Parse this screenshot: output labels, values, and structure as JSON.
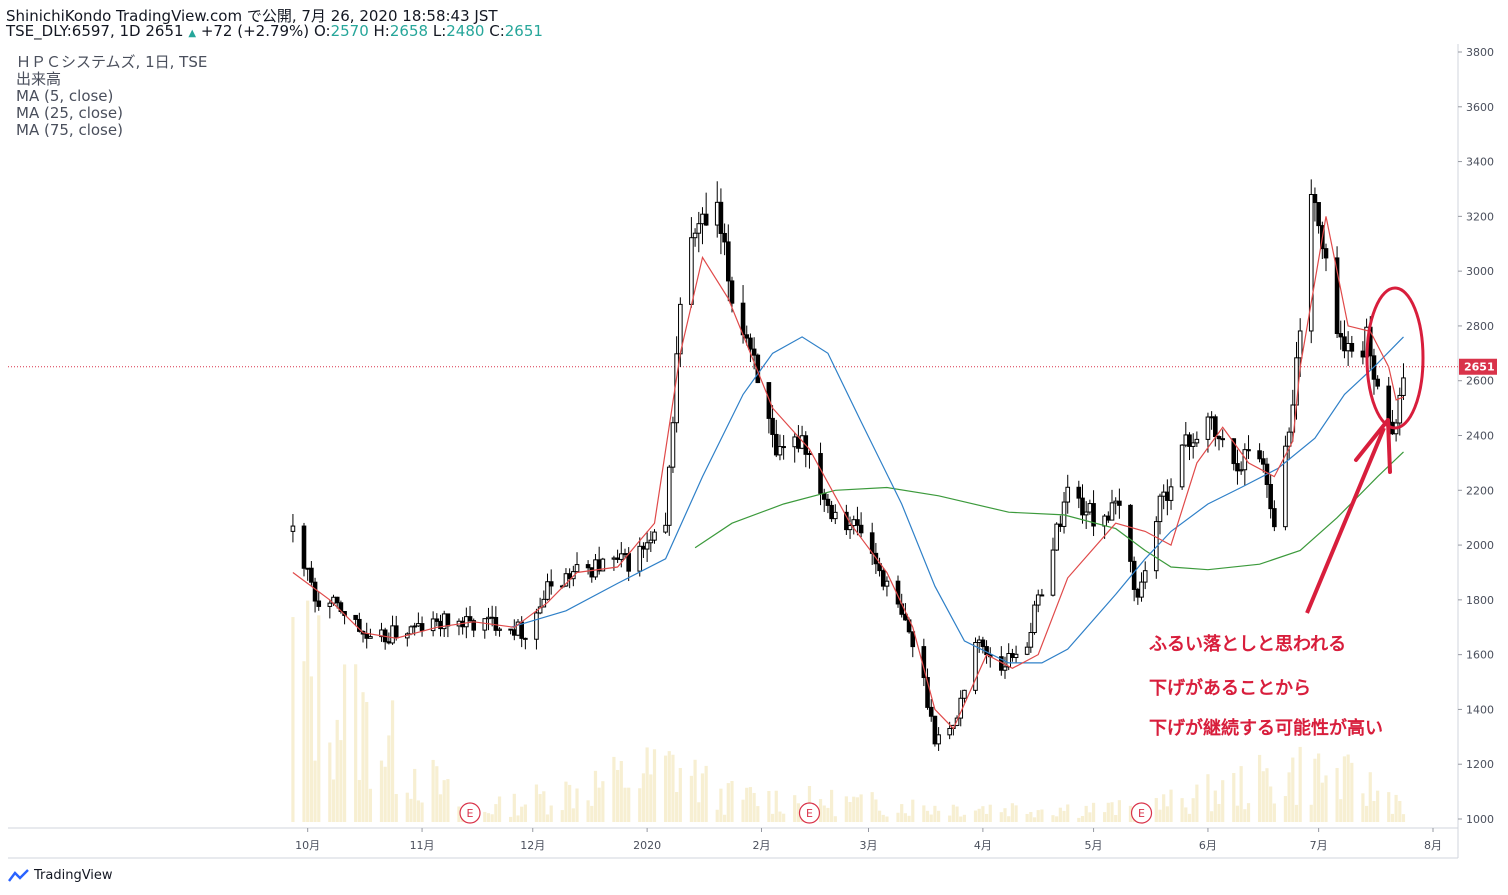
{
  "header": {
    "line1": "ShinichiKondo TradingView.com で公開, 7月 26, 2020 18:58:43 JST",
    "symbol": "TSE_DLY:6597, 1D 2651",
    "change": "+72 (+2.79%)",
    "o_label": "O:",
    "o_value": "2570",
    "h_label": "H:",
    "h_value": "2658",
    "l_label": "L:",
    "l_value": "2480",
    "c_label": "C:",
    "c_value": "2651"
  },
  "legend": {
    "title": "ＨＰＣシステムズ, 1日, TSE",
    "volume": "出来高",
    "ma5": "MA (5, close)",
    "ma25": "MA (25, close)",
    "ma75": "MA (75, close)"
  },
  "annotation": {
    "line1": "ふるい落としと思われる",
    "line2": "下げがあることから",
    "line3": "下げが継続する可能性が高い"
  },
  "footer": {
    "brand": "TradingView"
  },
  "colors": {
    "ma5": "#e04a4a",
    "ma25": "#2f80c8",
    "ma75": "#3c9a3c",
    "last_price": "#d9334a",
    "annotation": "#d81e3c",
    "up_change": "#26a69a"
  },
  "chart_data": {
    "type": "candlestick",
    "y_axis": {
      "min": 1000,
      "max": 3800,
      "ticks": [
        "3800",
        "3600",
        "3400",
        "3200",
        "3000",
        "2800",
        "2600",
        "2400",
        "2200",
        "2000",
        "1800",
        "1600",
        "1400",
        "1200",
        "1000"
      ]
    },
    "x_axis": {
      "ticks": [
        "10月",
        "11月",
        "12月",
        "2020",
        "2月",
        "3月",
        "4月",
        "5月",
        "6月",
        "7月",
        "8月"
      ]
    },
    "last_price": 2651,
    "last_price_label": "2651",
    "earnings_marker": "E",
    "earnings_dates": [
      "2019-11-14",
      "2020-02-14",
      "2020-05-14"
    ],
    "series": [
      {
        "name": "MA (5, close)",
        "points": [
          [
            "2019-09-27",
            1900
          ],
          [
            "2019-10-07",
            1800
          ],
          [
            "2019-10-16",
            1680
          ],
          [
            "2019-10-25",
            1660
          ],
          [
            "2019-11-05",
            1700
          ],
          [
            "2019-11-15",
            1720
          ],
          [
            "2019-11-26",
            1700
          ],
          [
            "2019-12-05",
            1790
          ],
          [
            "2019-12-13",
            1900
          ],
          [
            "2019-12-24",
            1920
          ],
          [
            "2020-01-03",
            2080
          ],
          [
            "2020-01-10",
            2700
          ],
          [
            "2020-01-16",
            3050
          ],
          [
            "2020-01-23",
            2900
          ],
          [
            "2020-02-04",
            2500
          ],
          [
            "2020-02-14",
            2350
          ],
          [
            "2020-02-25",
            2080
          ],
          [
            "2020-03-06",
            1900
          ],
          [
            "2020-03-13",
            1700
          ],
          [
            "2020-03-19",
            1400
          ],
          [
            "2020-03-24",
            1330
          ],
          [
            "2020-04-02",
            1600
          ],
          [
            "2020-04-09",
            1550
          ],
          [
            "2020-04-16",
            1600
          ],
          [
            "2020-04-24",
            1880
          ],
          [
            "2020-05-07",
            2080
          ],
          [
            "2020-05-15",
            2050
          ],
          [
            "2020-05-22",
            2000
          ],
          [
            "2020-05-29",
            2300
          ],
          [
            "2020-06-05",
            2430
          ],
          [
            "2020-06-12",
            2300
          ],
          [
            "2020-06-19",
            2250
          ],
          [
            "2020-06-24",
            2380
          ],
          [
            "2020-06-26",
            2650
          ],
          [
            "2020-07-03",
            3200
          ],
          [
            "2020-07-09",
            2800
          ],
          [
            "2020-07-15",
            2780
          ],
          [
            "2020-07-20",
            2650
          ],
          [
            "2020-07-22",
            2530
          ],
          [
            "2020-07-24",
            2540
          ]
        ]
      },
      {
        "name": "MA (25, close)",
        "points": [
          [
            "2019-11-25",
            1700
          ],
          [
            "2019-12-10",
            1760
          ],
          [
            "2019-12-24",
            1860
          ],
          [
            "2020-01-06",
            1950
          ],
          [
            "2020-01-16",
            2250
          ],
          [
            "2020-01-27",
            2550
          ],
          [
            "2020-02-04",
            2700
          ],
          [
            "2020-02-12",
            2760
          ],
          [
            "2020-02-19",
            2700
          ],
          [
            "2020-02-28",
            2450
          ],
          [
            "2020-03-10",
            2150
          ],
          [
            "2020-03-19",
            1850
          ],
          [
            "2020-03-27",
            1650
          ],
          [
            "2020-04-08",
            1570
          ],
          [
            "2020-04-17",
            1570
          ],
          [
            "2020-04-24",
            1620
          ],
          [
            "2020-05-07",
            1820
          ],
          [
            "2020-05-15",
            1950
          ],
          [
            "2020-05-22",
            2050
          ],
          [
            "2020-06-01",
            2150
          ],
          [
            "2020-06-10",
            2210
          ],
          [
            "2020-06-20",
            2280
          ],
          [
            "2020-06-30",
            2390
          ],
          [
            "2020-07-08",
            2550
          ],
          [
            "2020-07-16",
            2650
          ],
          [
            "2020-07-24",
            2760
          ]
        ]
      },
      {
        "name": "MA (75, close)",
        "points": [
          [
            "2020-01-14",
            1990
          ],
          [
            "2020-01-24",
            2080
          ],
          [
            "2020-02-07",
            2150
          ],
          [
            "2020-02-21",
            2200
          ],
          [
            "2020-03-06",
            2210
          ],
          [
            "2020-03-20",
            2180
          ],
          [
            "2020-04-08",
            2120
          ],
          [
            "2020-04-23",
            2110
          ],
          [
            "2020-05-07",
            2060
          ],
          [
            "2020-05-15",
            1980
          ],
          [
            "2020-05-22",
            1920
          ],
          [
            "2020-06-01",
            1910
          ],
          [
            "2020-06-15",
            1930
          ],
          [
            "2020-06-26",
            1980
          ],
          [
            "2020-07-06",
            2100
          ],
          [
            "2020-07-17",
            2250
          ],
          [
            "2020-07-24",
            2340
          ]
        ]
      },
      {
        "name": "Price",
        "points": [
          [
            "2019-09-27",
            2050
          ],
          [
            "2019-10-03",
            1800
          ],
          [
            "2019-10-11",
            1760
          ],
          [
            "2019-10-18",
            1640
          ],
          [
            "2019-10-25",
            1680
          ],
          [
            "2019-11-01",
            1700
          ],
          [
            "2019-11-08",
            1720
          ],
          [
            "2019-11-14",
            1710
          ],
          [
            "2019-11-22",
            1720
          ],
          [
            "2019-11-29",
            1680
          ],
          [
            "2019-12-06",
            1860
          ],
          [
            "2019-12-13",
            1900
          ],
          [
            "2019-12-20",
            1930
          ],
          [
            "2019-12-27",
            1940
          ],
          [
            "2020-01-06",
            2050
          ],
          [
            "2020-01-10",
            2900
          ],
          [
            "2020-01-14",
            3150
          ],
          [
            "2020-01-20",
            3200
          ],
          [
            "2020-01-24",
            2900
          ],
          [
            "2020-01-30",
            2700
          ],
          [
            "2020-02-05",
            2300
          ],
          [
            "2020-02-12",
            2400
          ],
          [
            "2020-02-19",
            2150
          ],
          [
            "2020-02-28",
            2050
          ],
          [
            "2020-03-06",
            1850
          ],
          [
            "2020-03-12",
            1680
          ],
          [
            "2020-03-16",
            1500
          ],
          [
            "2020-03-19",
            1300
          ],
          [
            "2020-03-24",
            1330
          ],
          [
            "2020-03-30",
            1650
          ],
          [
            "2020-04-06",
            1560
          ],
          [
            "2020-04-13",
            1650
          ],
          [
            "2020-04-20",
            2000
          ],
          [
            "2020-04-24",
            2200
          ],
          [
            "2020-05-01",
            2100
          ],
          [
            "2020-05-08",
            2130
          ],
          [
            "2020-05-13",
            1800
          ],
          [
            "2020-05-18",
            2100
          ],
          [
            "2020-05-25",
            2350
          ],
          [
            "2020-06-01",
            2450
          ],
          [
            "2020-06-08",
            2300
          ],
          [
            "2020-06-15",
            2350
          ],
          [
            "2020-06-19",
            2100
          ],
          [
            "2020-06-24",
            2500
          ],
          [
            "2020-06-29",
            3300
          ],
          [
            "2020-07-03",
            3000
          ],
          [
            "2020-07-08",
            2700
          ],
          [
            "2020-07-14",
            2750
          ],
          [
            "2020-07-17",
            2550
          ],
          [
            "2020-07-22",
            2430
          ],
          [
            "2020-07-24",
            2651
          ]
        ]
      },
      {
        "name": "Volume",
        "points": [
          [
            "2019-09-27",
            720000
          ],
          [
            "2019-11-14",
            40000
          ],
          [
            "2020-01-10",
            260000
          ],
          [
            "2020-01-20",
            120000
          ],
          [
            "2020-03-19",
            70000
          ],
          [
            "2020-05-14",
            60000
          ],
          [
            "2020-06-29",
            240000
          ],
          [
            "2020-07-24",
            100000
          ]
        ]
      }
    ]
  }
}
